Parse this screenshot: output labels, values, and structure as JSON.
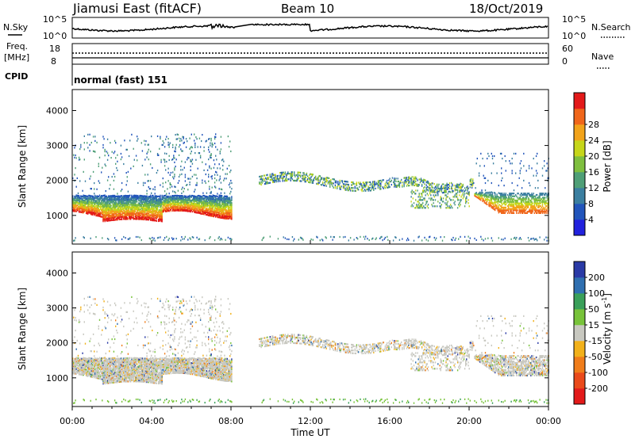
{
  "header": {
    "station": "Jiamusi East (fitACF)",
    "beam": "Beam 10",
    "date": "18/Oct/2019"
  },
  "panels": {
    "nsky_label": "N.Sky",
    "nsearch_label": "N.Search",
    "noise_ticks": [
      "10^5",
      "10^0"
    ],
    "freq_label": "Freq.",
    "freq_unit": "[MHz]",
    "freq_ticks": [
      "18",
      "8"
    ],
    "nave_label": "Nave",
    "nave_ticks": [
      "60",
      "0"
    ],
    "cpid_label": "CPID",
    "cpid_value": "normal (fast) 151"
  },
  "colors": {
    "power_scale": [
      "#2222dd",
      "#2255bb",
      "#3b7fa0",
      "#4f9f77",
      "#7fbf3f",
      "#c6d61a",
      "#f2a31a",
      "#f0661a",
      "#e31a1a"
    ],
    "velocity_scale": [
      "#2a3aa6",
      "#2f6fb0",
      "#3aa05a",
      "#78c33a",
      "#c8c8c0",
      "#f2b11a",
      "#f07d1a",
      "#ea4a1a",
      "#e31a1a"
    ]
  },
  "chart_data": [
    {
      "type": "heatmap",
      "name": "power",
      "ylabel": "Slant Range [km]",
      "yticks": [
        1000,
        2000,
        3000,
        4000
      ],
      "ylim": [
        180,
        4600
      ],
      "xticks": [
        "00:00",
        "04:00",
        "08:00",
        "12:00",
        "16:00",
        "20:00",
        "00:00"
      ],
      "xlim_hours": [
        0,
        24
      ],
      "colorbar_label": "Power [dB]",
      "colorbar_ticks": [
        "4",
        "8",
        "12",
        "16",
        "20",
        "24",
        "28"
      ],
      "features": [
        {
          "band": "main echo band",
          "hours": [
            0,
            8
          ],
          "range_km": [
            800,
            1500
          ]
        },
        {
          "band": "scatter patch",
          "hours": [
            9.5,
            16
          ],
          "range_km": [
            1500,
            2200
          ]
        },
        {
          "band": "scatter patch",
          "hours": [
            16,
            20
          ],
          "range_km": [
            1200,
            2200
          ]
        },
        {
          "band": "main echo band",
          "hours": [
            21,
            24
          ],
          "range_km": [
            900,
            1500
          ]
        }
      ]
    },
    {
      "type": "heatmap",
      "name": "velocity",
      "ylabel": "Slant Range [km]",
      "yticks": [
        1000,
        2000,
        3000,
        4000
      ],
      "ylim": [
        180,
        4600
      ],
      "xticks": [
        "00:00",
        "04:00",
        "08:00",
        "12:00",
        "16:00",
        "20:00",
        "00:00"
      ],
      "xlim_hours": [
        0,
        24
      ],
      "xlabel": "Time UT",
      "colorbar_label": "Velocity [m s",
      "colorbar_label_sup": "-1",
      "colorbar_label_end": "]",
      "colorbar_ticks": [
        "200",
        "100",
        "50",
        "15",
        "-15",
        "-50",
        "-100",
        "-200"
      ]
    }
  ]
}
